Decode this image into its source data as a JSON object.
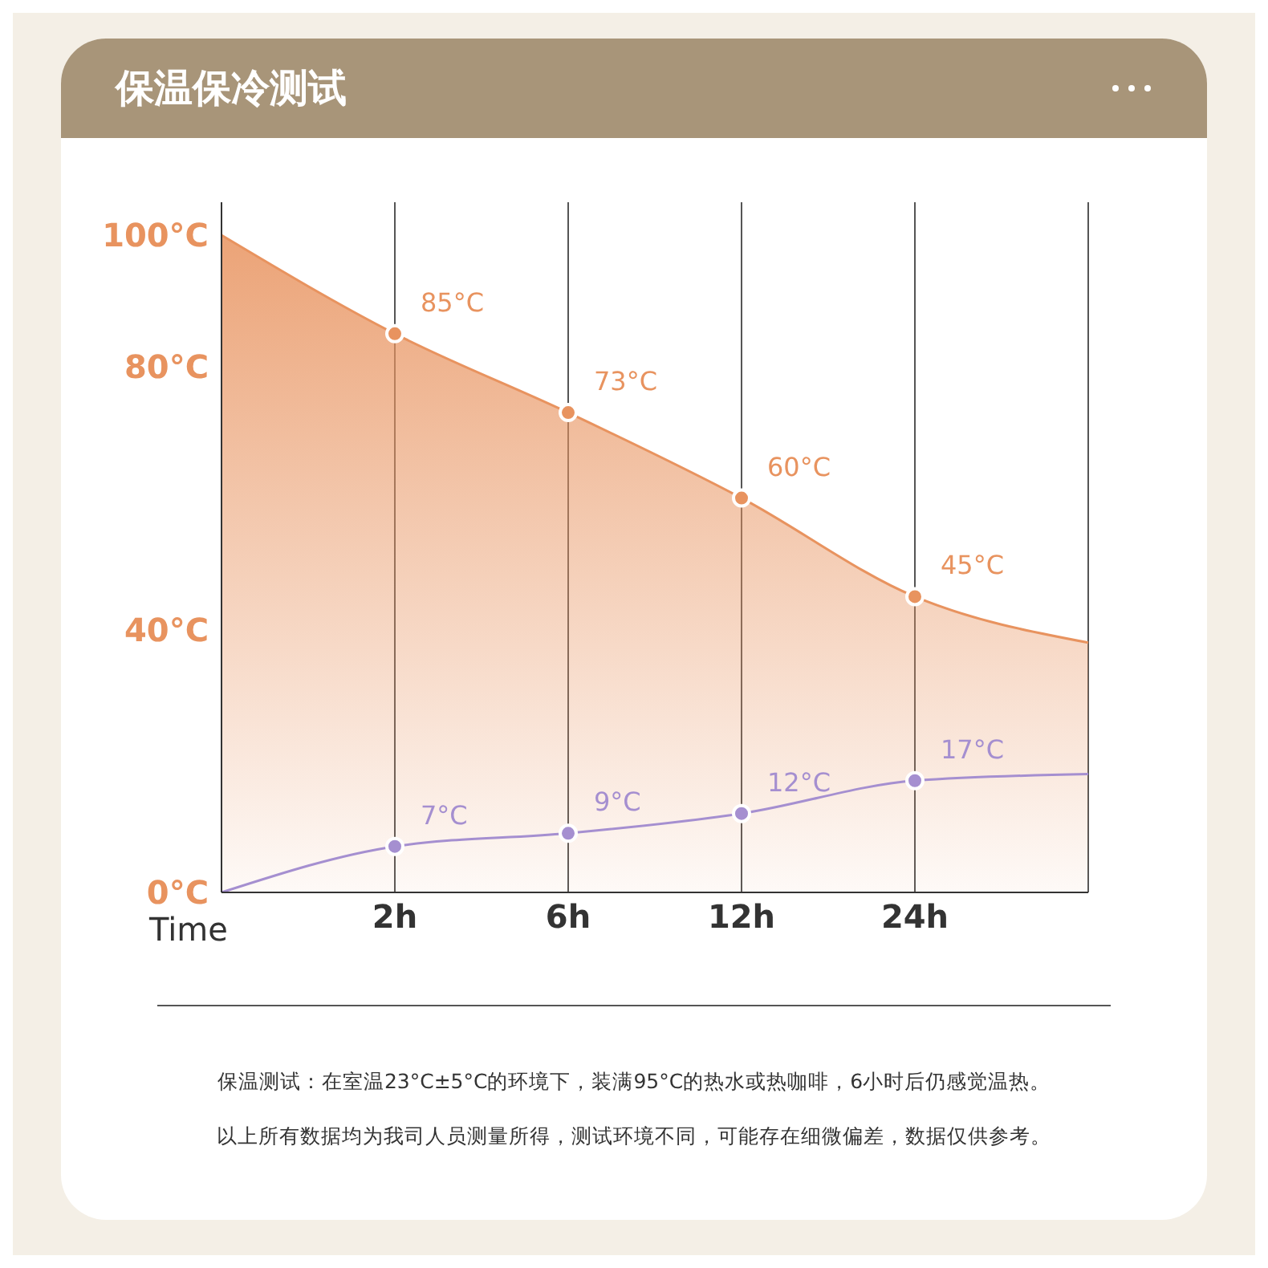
{
  "chart_data": {
    "type": "area",
    "title": "保温保冷测试",
    "xlabel": "Time",
    "categories": [
      null,
      "2h",
      "6h",
      "12h",
      "24h",
      null
    ],
    "series": [
      {
        "color": "#e8935f",
        "values": [
          100,
          85,
          73,
          60,
          45,
          38
        ],
        "value_labels": [
          null,
          "85°C",
          "73°C",
          "60°C",
          "45°C",
          null
        ]
      },
      {
        "type": "line",
        "color": "#a58fd0",
        "values": [
          0,
          7,
          9,
          12,
          17,
          18
        ],
        "value_labels": [
          null,
          "7°C",
          "9°C",
          "12°C",
          "17°C",
          null
        ]
      }
    ],
    "ylim": [
      0,
      105
    ],
    "yticks": [
      {
        "value": 0,
        "label": "0°C"
      },
      {
        "value": 40,
        "label": "40°C"
      },
      {
        "value": 80,
        "label": "80°C"
      },
      {
        "value": 100,
        "label": "100°C"
      }
    ],
    "grid": "x",
    "marker": "circle",
    "annotations": [
      "保温测试：在室温23°C±5°C的环境下，装满95°C的热水或热咖啡，6小时后仍感觉温热。",
      "以上所有数据均为我司人员测量所得，测试环境不同，可能存在细微偏差，数据仅供参考。"
    ]
  }
}
